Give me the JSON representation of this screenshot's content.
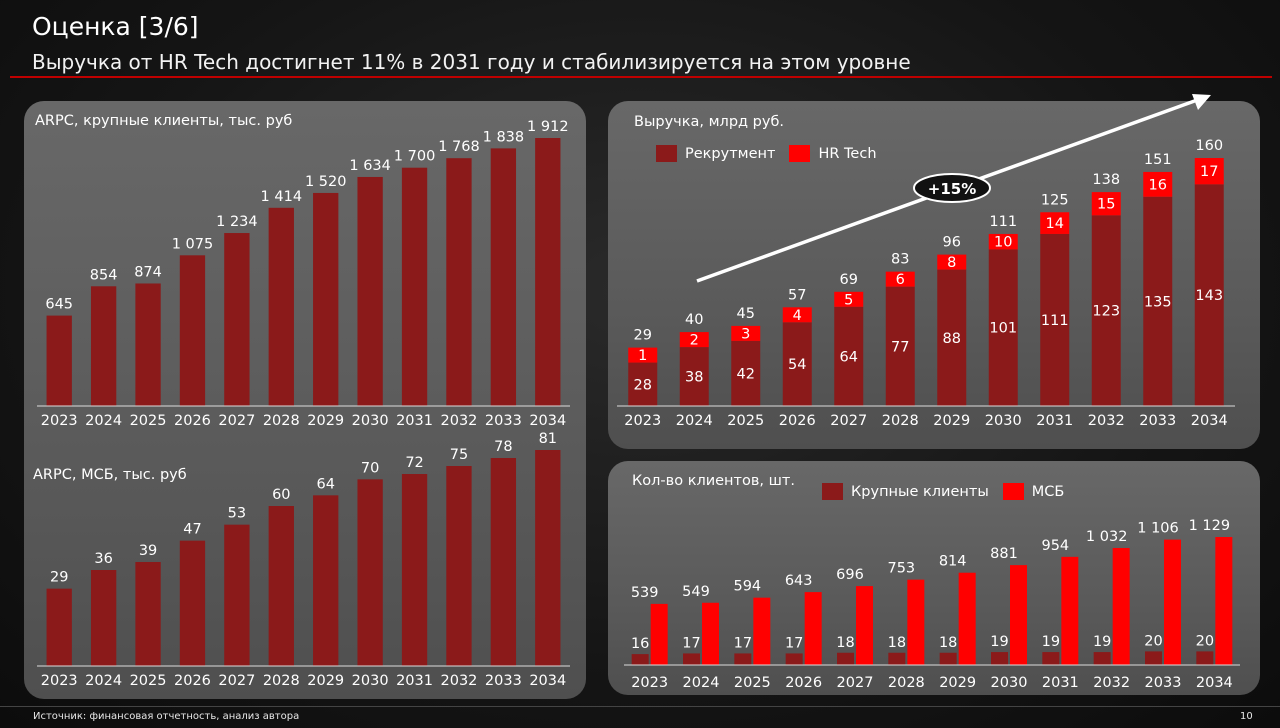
{
  "slide": {
    "title": "Оценка [3/6]",
    "subtitle": "Выручка от HR Tech достигнет 11% в 2031 году и стабилизируется на этом уровне",
    "source": "Источник: финансовая отчетность, анализ автора",
    "page_number": "10"
  },
  "colors": {
    "dark_red": "#8b1a1a",
    "bright_red": "#ff0000",
    "accent_rule": "#c00000"
  },
  "chart_data": [
    {
      "id": "arpc_large",
      "type": "bar",
      "title": "ARPC, крупные клиенты, тыс. руб",
      "categories": [
        "2023",
        "2024",
        "2025",
        "2026",
        "2027",
        "2028",
        "2029",
        "2030",
        "2031",
        "2032",
        "2033",
        "2034"
      ],
      "values": [
        645,
        854,
        874,
        1075,
        1234,
        1414,
        1520,
        1634,
        1700,
        1768,
        1838,
        1912
      ],
      "value_labels": [
        "645",
        "854",
        "874",
        "1 075",
        "1 234",
        "1 414",
        "1 520",
        "1 634",
        "1 700",
        "1 768",
        "1 838",
        "1 912"
      ],
      "ylim": [
        0,
        1912
      ]
    },
    {
      "id": "arpc_smb",
      "type": "bar",
      "title": "ARPC, МСБ, тыс. руб",
      "categories": [
        "2023",
        "2024",
        "2025",
        "2026",
        "2027",
        "2028",
        "2029",
        "2030",
        "2031",
        "2032",
        "2033",
        "2034"
      ],
      "values": [
        29,
        36,
        39,
        47,
        53,
        60,
        64,
        70,
        72,
        75,
        78,
        81
      ],
      "value_labels": [
        "29",
        "36",
        "39",
        "47",
        "53",
        "60",
        "64",
        "70",
        "72",
        "75",
        "78",
        "81"
      ],
      "ylim": [
        0,
        81
      ]
    },
    {
      "id": "revenue",
      "type": "bar",
      "stacked": true,
      "title": "Выручка, млрд руб.",
      "categories": [
        "2023",
        "2024",
        "2025",
        "2026",
        "2027",
        "2028",
        "2029",
        "2030",
        "2031",
        "2032",
        "2033",
        "2034"
      ],
      "series": [
        {
          "name": "Рекрутмент",
          "values": [
            28,
            38,
            42,
            54,
            64,
            77,
            88,
            101,
            111,
            123,
            135,
            143
          ]
        },
        {
          "name": "HR Tech",
          "values": [
            1,
            2,
            3,
            4,
            5,
            6,
            8,
            10,
            14,
            15,
            16,
            17
          ]
        }
      ],
      "totals": [
        29,
        40,
        45,
        57,
        69,
        83,
        96,
        111,
        125,
        138,
        151,
        160
      ],
      "annotation": "+15%",
      "ylim": [
        0,
        160
      ]
    },
    {
      "id": "clients",
      "type": "bar",
      "title": "Кол-во клиентов, шт.",
      "categories": [
        "2023",
        "2024",
        "2025",
        "2026",
        "2027",
        "2028",
        "2029",
        "2030",
        "2031",
        "2032",
        "2033",
        "2034"
      ],
      "series": [
        {
          "name": "Крупные клиенты",
          "values": [
            16,
            17,
            17,
            17,
            18,
            18,
            18,
            19,
            19,
            19,
            20,
            20
          ],
          "labels": [
            "16",
            "17",
            "17",
            "17",
            "18",
            "18",
            "18",
            "19",
            "19",
            "19",
            "20",
            "20"
          ]
        },
        {
          "name": "МСБ",
          "values": [
            539,
            549,
            594,
            643,
            696,
            753,
            814,
            881,
            954,
            1032,
            1106,
            1129
          ],
          "labels": [
            "539",
            "549",
            "594",
            "643",
            "696",
            "753",
            "814",
            "881",
            "954",
            "1 032",
            "1 106",
            "1 129"
          ]
        }
      ],
      "ylim": [
        0,
        1129
      ]
    }
  ]
}
